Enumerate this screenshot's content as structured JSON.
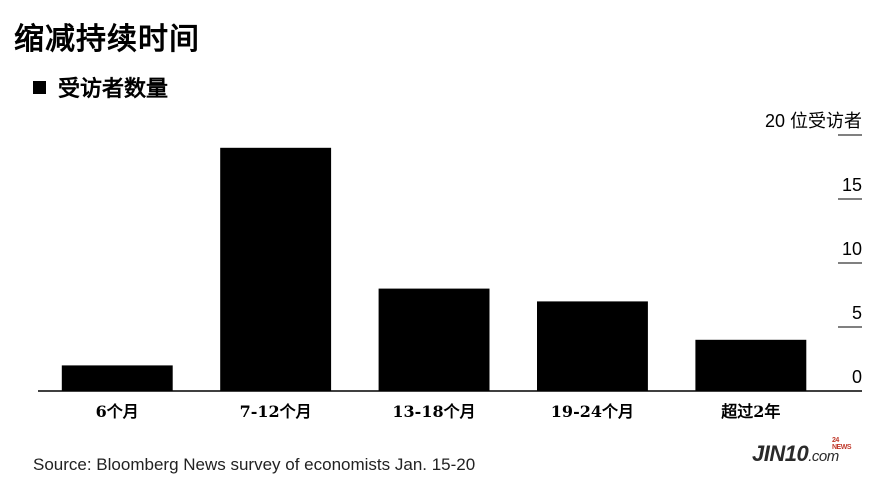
{
  "title": "缩减持续时间",
  "watermark": {
    "main": "JIN10",
    "suffix": ".com",
    "tag": "24 NEWS"
  },
  "source": "Source: Bloomberg News survey of economists Jan. 15-20",
  "chart_data": {
    "type": "bar",
    "legend": [
      "受访者数量"
    ],
    "legend_position": "top-left",
    "categories": [
      "6个月",
      "7-12个月",
      "13-18个月",
      "19-24个月",
      "超过2年"
    ],
    "series": [
      {
        "name": "受访者数量",
        "color": "#000000",
        "values": [
          2,
          19,
          8,
          7,
          4
        ]
      }
    ],
    "ylim": [
      0,
      20
    ],
    "yticks": [
      0,
      5,
      10,
      15,
      20
    ],
    "ytick_labels": [
      "0",
      "5",
      "10",
      "15",
      "20 位受访者"
    ],
    "y_axis_position": "right",
    "grid": false
  }
}
